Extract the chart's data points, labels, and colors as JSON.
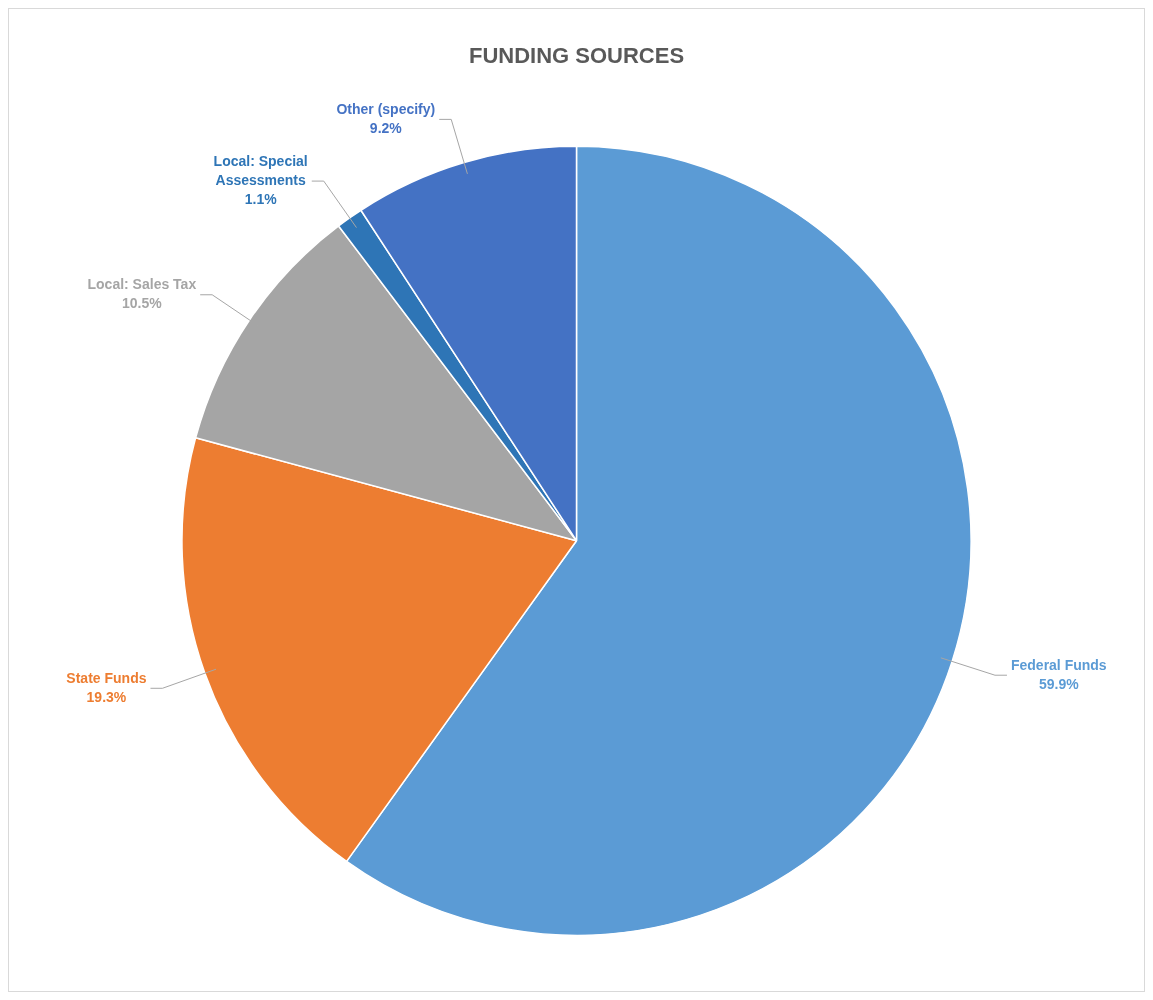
{
  "chart_data": {
    "type": "pie",
    "title": "FUNDING SOURCES",
    "categories": [
      "Federal Funds",
      "State Funds",
      "Local: Sales Tax",
      "Local: Special Assessments",
      "Other (specify)"
    ],
    "values": [
      59.9,
      19.3,
      10.5,
      1.1,
      9.2
    ],
    "value_labels": [
      "59.9%",
      "19.3%",
      "10.5%",
      "1.1%",
      "9.2%"
    ],
    "colors": [
      "#5b9bd5",
      "#ed7d31",
      "#a5a5a5",
      "#2e75b6",
      "#4472c4"
    ],
    "legend": false
  }
}
